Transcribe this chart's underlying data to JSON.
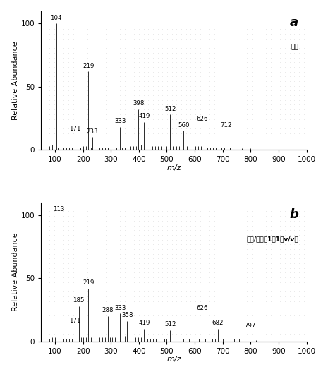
{
  "panel_a": {
    "label": "a",
    "annotation": "甲醇",
    "peaks": [
      {
        "mz": 60,
        "intensity": 2
      },
      {
        "mz": 70,
        "intensity": 2
      },
      {
        "mz": 80,
        "intensity": 3
      },
      {
        "mz": 90,
        "intensity": 4
      },
      {
        "mz": 104,
        "intensity": 100
      },
      {
        "mz": 110,
        "intensity": 2
      },
      {
        "mz": 120,
        "intensity": 2
      },
      {
        "mz": 130,
        "intensity": 2
      },
      {
        "mz": 140,
        "intensity": 2
      },
      {
        "mz": 150,
        "intensity": 2
      },
      {
        "mz": 160,
        "intensity": 2
      },
      {
        "mz": 171,
        "intensity": 12
      },
      {
        "mz": 180,
        "intensity": 2
      },
      {
        "mz": 190,
        "intensity": 2
      },
      {
        "mz": 200,
        "intensity": 3
      },
      {
        "mz": 210,
        "intensity": 3
      },
      {
        "mz": 219,
        "intensity": 62
      },
      {
        "mz": 228,
        "intensity": 2
      },
      {
        "mz": 233,
        "intensity": 10
      },
      {
        "mz": 240,
        "intensity": 2
      },
      {
        "mz": 250,
        "intensity": 3
      },
      {
        "mz": 260,
        "intensity": 2
      },
      {
        "mz": 270,
        "intensity": 2
      },
      {
        "mz": 280,
        "intensity": 2
      },
      {
        "mz": 290,
        "intensity": 2
      },
      {
        "mz": 300,
        "intensity": 2
      },
      {
        "mz": 310,
        "intensity": 2
      },
      {
        "mz": 320,
        "intensity": 2
      },
      {
        "mz": 333,
        "intensity": 18
      },
      {
        "mz": 340,
        "intensity": 2
      },
      {
        "mz": 350,
        "intensity": 2
      },
      {
        "mz": 360,
        "intensity": 3
      },
      {
        "mz": 370,
        "intensity": 3
      },
      {
        "mz": 380,
        "intensity": 3
      },
      {
        "mz": 390,
        "intensity": 3
      },
      {
        "mz": 398,
        "intensity": 32
      },
      {
        "mz": 407,
        "intensity": 4
      },
      {
        "mz": 419,
        "intensity": 22
      },
      {
        "mz": 428,
        "intensity": 3
      },
      {
        "mz": 438,
        "intensity": 3
      },
      {
        "mz": 448,
        "intensity": 3
      },
      {
        "mz": 458,
        "intensity": 3
      },
      {
        "mz": 468,
        "intensity": 3
      },
      {
        "mz": 478,
        "intensity": 3
      },
      {
        "mz": 488,
        "intensity": 3
      },
      {
        "mz": 498,
        "intensity": 3
      },
      {
        "mz": 512,
        "intensity": 28
      },
      {
        "mz": 522,
        "intensity": 3
      },
      {
        "mz": 535,
        "intensity": 3
      },
      {
        "mz": 545,
        "intensity": 3
      },
      {
        "mz": 560,
        "intensity": 15
      },
      {
        "mz": 572,
        "intensity": 3
      },
      {
        "mz": 582,
        "intensity": 3
      },
      {
        "mz": 592,
        "intensity": 3
      },
      {
        "mz": 602,
        "intensity": 3
      },
      {
        "mz": 612,
        "intensity": 3
      },
      {
        "mz": 622,
        "intensity": 3
      },
      {
        "mz": 626,
        "intensity": 20
      },
      {
        "mz": 635,
        "intensity": 3
      },
      {
        "mz": 645,
        "intensity": 2
      },
      {
        "mz": 655,
        "intensity": 2
      },
      {
        "mz": 665,
        "intensity": 2
      },
      {
        "mz": 675,
        "intensity": 2
      },
      {
        "mz": 685,
        "intensity": 2
      },
      {
        "mz": 695,
        "intensity": 2
      },
      {
        "mz": 705,
        "intensity": 2
      },
      {
        "mz": 712,
        "intensity": 15
      },
      {
        "mz": 725,
        "intensity": 2
      },
      {
        "mz": 745,
        "intensity": 2
      },
      {
        "mz": 770,
        "intensity": 1
      },
      {
        "mz": 800,
        "intensity": 1
      },
      {
        "mz": 850,
        "intensity": 1
      },
      {
        "mz": 900,
        "intensity": 1
      },
      {
        "mz": 950,
        "intensity": 1
      }
    ],
    "labeled_peaks": [
      {
        "mz": 104,
        "intensity": 100,
        "label": "104"
      },
      {
        "mz": 171,
        "intensity": 12,
        "label": "171"
      },
      {
        "mz": 219,
        "intensity": 62,
        "label": "219"
      },
      {
        "mz": 233,
        "intensity": 10,
        "label": "233"
      },
      {
        "mz": 333,
        "intensity": 18,
        "label": "333"
      },
      {
        "mz": 398,
        "intensity": 32,
        "label": "398"
      },
      {
        "mz": 419,
        "intensity": 22,
        "label": "419"
      },
      {
        "mz": 512,
        "intensity": 28,
        "label": "512"
      },
      {
        "mz": 560,
        "intensity": 15,
        "label": "560"
      },
      {
        "mz": 626,
        "intensity": 20,
        "label": "626"
      },
      {
        "mz": 712,
        "intensity": 15,
        "label": "712"
      }
    ]
  },
  "panel_b": {
    "label": "b",
    "annotation": "甲醇/乙酸（1：1，v/v）",
    "peaks": [
      {
        "mz": 60,
        "intensity": 2
      },
      {
        "mz": 70,
        "intensity": 2
      },
      {
        "mz": 80,
        "intensity": 2
      },
      {
        "mz": 90,
        "intensity": 3
      },
      {
        "mz": 100,
        "intensity": 3
      },
      {
        "mz": 113,
        "intensity": 100
      },
      {
        "mz": 120,
        "intensity": 4
      },
      {
        "mz": 130,
        "intensity": 2
      },
      {
        "mz": 140,
        "intensity": 2
      },
      {
        "mz": 150,
        "intensity": 2
      },
      {
        "mz": 160,
        "intensity": 2
      },
      {
        "mz": 171,
        "intensity": 12
      },
      {
        "mz": 180,
        "intensity": 3
      },
      {
        "mz": 185,
        "intensity": 28
      },
      {
        "mz": 193,
        "intensity": 3
      },
      {
        "mz": 200,
        "intensity": 3
      },
      {
        "mz": 210,
        "intensity": 3
      },
      {
        "mz": 219,
        "intensity": 42
      },
      {
        "mz": 228,
        "intensity": 3
      },
      {
        "mz": 240,
        "intensity": 3
      },
      {
        "mz": 250,
        "intensity": 3
      },
      {
        "mz": 260,
        "intensity": 3
      },
      {
        "mz": 270,
        "intensity": 3
      },
      {
        "mz": 280,
        "intensity": 3
      },
      {
        "mz": 288,
        "intensity": 20
      },
      {
        "mz": 296,
        "intensity": 3
      },
      {
        "mz": 305,
        "intensity": 3
      },
      {
        "mz": 315,
        "intensity": 3
      },
      {
        "mz": 325,
        "intensity": 3
      },
      {
        "mz": 333,
        "intensity": 22
      },
      {
        "mz": 342,
        "intensity": 3
      },
      {
        "mz": 350,
        "intensity": 4
      },
      {
        "mz": 358,
        "intensity": 16
      },
      {
        "mz": 368,
        "intensity": 3
      },
      {
        "mz": 378,
        "intensity": 3
      },
      {
        "mz": 388,
        "intensity": 3
      },
      {
        "mz": 398,
        "intensity": 3
      },
      {
        "mz": 408,
        "intensity": 3
      },
      {
        "mz": 419,
        "intensity": 10
      },
      {
        "mz": 430,
        "intensity": 2
      },
      {
        "mz": 440,
        "intensity": 2
      },
      {
        "mz": 450,
        "intensity": 2
      },
      {
        "mz": 460,
        "intensity": 2
      },
      {
        "mz": 470,
        "intensity": 2
      },
      {
        "mz": 480,
        "intensity": 2
      },
      {
        "mz": 490,
        "intensity": 2
      },
      {
        "mz": 500,
        "intensity": 2
      },
      {
        "mz": 512,
        "intensity": 9
      },
      {
        "mz": 525,
        "intensity": 2
      },
      {
        "mz": 540,
        "intensity": 2
      },
      {
        "mz": 560,
        "intensity": 2
      },
      {
        "mz": 580,
        "intensity": 2
      },
      {
        "mz": 600,
        "intensity": 2
      },
      {
        "mz": 615,
        "intensity": 2
      },
      {
        "mz": 626,
        "intensity": 22
      },
      {
        "mz": 638,
        "intensity": 2
      },
      {
        "mz": 650,
        "intensity": 2
      },
      {
        "mz": 662,
        "intensity": 2
      },
      {
        "mz": 674,
        "intensity": 2
      },
      {
        "mz": 682,
        "intensity": 10
      },
      {
        "mz": 700,
        "intensity": 2
      },
      {
        "mz": 720,
        "intensity": 2
      },
      {
        "mz": 740,
        "intensity": 2
      },
      {
        "mz": 760,
        "intensity": 2
      },
      {
        "mz": 780,
        "intensity": 2
      },
      {
        "mz": 797,
        "intensity": 8
      },
      {
        "mz": 820,
        "intensity": 1
      },
      {
        "mz": 850,
        "intensity": 1
      },
      {
        "mz": 900,
        "intensity": 1
      },
      {
        "mz": 950,
        "intensity": 1
      }
    ],
    "labeled_peaks": [
      {
        "mz": 113,
        "intensity": 100,
        "label": "113"
      },
      {
        "mz": 171,
        "intensity": 12,
        "label": "171"
      },
      {
        "mz": 185,
        "intensity": 28,
        "label": "185"
      },
      {
        "mz": 219,
        "intensity": 42,
        "label": "219"
      },
      {
        "mz": 288,
        "intensity": 20,
        "label": "288"
      },
      {
        "mz": 333,
        "intensity": 22,
        "label": "333"
      },
      {
        "mz": 358,
        "intensity": 16,
        "label": "358"
      },
      {
        "mz": 419,
        "intensity": 10,
        "label": "419"
      },
      {
        "mz": 512,
        "intensity": 9,
        "label": "512"
      },
      {
        "mz": 626,
        "intensity": 22,
        "label": "626"
      },
      {
        "mz": 682,
        "intensity": 10,
        "label": "682"
      },
      {
        "mz": 797,
        "intensity": 8,
        "label": "797"
      }
    ]
  },
  "xlim": [
    50,
    1000
  ],
  "ylim": [
    0,
    110
  ],
  "xticks": [
    100,
    200,
    300,
    400,
    500,
    600,
    700,
    800,
    900,
    1000
  ],
  "yticks": [
    0,
    50,
    100
  ],
  "xlabel": "m/z",
  "ylabel": "Relative Abundance",
  "dot_color": "#cccccc",
  "spine_color": "#000000",
  "bar_color": "#2a2a2a",
  "axis_fontsize": 8,
  "panel_label_fontsize": 13
}
